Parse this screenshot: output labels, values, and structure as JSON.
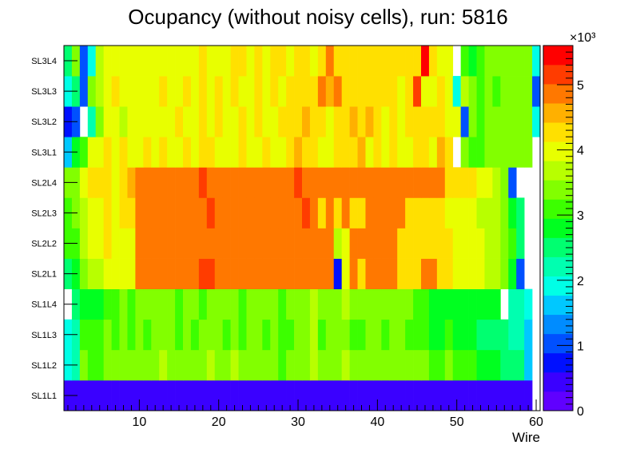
{
  "chart_data": {
    "type": "heatmap",
    "title": "Ocupancy (without noisy cells), run: 5816",
    "xlabel": "Wire",
    "ylabel": "",
    "xlim": [
      0.5,
      60.5
    ],
    "x_ticks": [
      "10",
      "20",
      "30",
      "40",
      "50",
      "60"
    ],
    "rows": [
      "SL1L1",
      "SL1L2",
      "SL1L3",
      "SL1L4",
      "SL2L1",
      "SL2L2",
      "SL2L3",
      "SL2L4",
      "SL3L1",
      "SL3L2",
      "SL3L3",
      "SL3L4"
    ],
    "colorbar": {
      "min": 0,
      "max": 5600,
      "exponent_label": "×10³",
      "ticks": [
        "0",
        "1",
        "2",
        "3",
        "4",
        "5"
      ],
      "palette": [
        "#6000ff",
        "#3a00ff",
        "#0010ff",
        "#0050ff",
        "#008cff",
        "#00c8ff",
        "#00ffe6",
        "#00ffb0",
        "#00ff70",
        "#00ff20",
        "#3cff00",
        "#82ff00",
        "#b8ff00",
        "#e8ff00",
        "#ffe000",
        "#ffb000",
        "#ff7800",
        "#ff3c00",
        "#ff0000"
      ]
    },
    "values": {
      "SL1L1": [
        350,
        350,
        350,
        350,
        350,
        350,
        350,
        350,
        350,
        350,
        350,
        350,
        350,
        350,
        350,
        350,
        350,
        350,
        350,
        350,
        350,
        350,
        350,
        350,
        350,
        350,
        350,
        350,
        350,
        350,
        350,
        350,
        350,
        350,
        350,
        350,
        350,
        350,
        350,
        350,
        350,
        350,
        350,
        350,
        350,
        350,
        350,
        350,
        350,
        350,
        350,
        350,
        350,
        350,
        350,
        350,
        350,
        350,
        350,
        0
      ],
      "SL1L2": [
        1800,
        2100,
        3300,
        3000,
        3200,
        3400,
        3300,
        3500,
        3300,
        3400,
        3300,
        3500,
        3600,
        3400,
        3300,
        3500,
        3400,
        3300,
        3600,
        3500,
        3400,
        3600,
        3300,
        3400,
        3500,
        3300,
        3400,
        3200,
        3400,
        3500,
        3400,
        3800,
        3300,
        3400,
        3500,
        3600,
        3400,
        3300,
        3500,
        3400,
        3300,
        3500,
        3400,
        3300,
        3400,
        3300,
        3100,
        3200,
        3300,
        3000,
        3100,
        3000,
        2900,
        2800,
        2700,
        2600,
        2500,
        2400,
        1600,
        0
      ],
      "SL1L3": [
        1800,
        2200,
        3100,
        3200,
        3000,
        3300,
        3100,
        3400,
        3200,
        3300,
        3100,
        3400,
        3500,
        3300,
        3100,
        3400,
        3200,
        3300,
        3500,
        3400,
        3200,
        3500,
        3100,
        3300,
        3400,
        3100,
        3300,
        3000,
        3200,
        3400,
        3300,
        3700,
        3100,
        3300,
        3400,
        3500,
        3200,
        3100,
        3400,
        3300,
        3200,
        3400,
        3300,
        3200,
        3100,
        3000,
        2900,
        2900,
        3000,
        2800,
        2800,
        2700,
        2600,
        2500,
        2500,
        2400,
        2300,
        2200,
        1500,
        0
      ],
      "SL1L4": [
        0,
        2500,
        2700,
        2900,
        2800,
        3200,
        3100,
        3300,
        3200,
        3300,
        3300,
        3400,
        3500,
        3300,
        3200,
        3400,
        3300,
        3200,
        3500,
        3400,
        3300,
        3500,
        3200,
        3300,
        3400,
        3300,
        3400,
        3200,
        3300,
        3400,
        3300,
        3800,
        3300,
        3400,
        3500,
        3600,
        3400,
        3300,
        3500,
        3400,
        3300,
        3500,
        3400,
        3300,
        3200,
        3100,
        2900,
        2800,
        2900,
        2800,
        2900,
        2700,
        2800,
        2800,
        2700,
        0,
        2300,
        2200,
        1800,
        0
      ],
      "SL2L1": [
        2600,
        2900,
        3400,
        3700,
        3800,
        4100,
        4100,
        4100,
        4100,
        4800,
        4800,
        4800,
        4800,
        4800,
        4800,
        4800,
        4800,
        5100,
        5100,
        4800,
        4800,
        4800,
        4800,
        4800,
        4800,
        4800,
        4800,
        4800,
        4800,
        4800,
        4800,
        4800,
        4800,
        4800,
        600,
        4100,
        4800,
        4400,
        4800,
        4800,
        4800,
        4800,
        4400,
        4400,
        4400,
        4800,
        4800,
        4400,
        4400,
        4100,
        4100,
        4100,
        4000,
        3800,
        3800,
        3500,
        2900,
        1000,
        0,
        0
      ],
      "SL2L2": [
        3000,
        3100,
        3700,
        4000,
        4100,
        4200,
        4100,
        4100,
        4100,
        4800,
        4800,
        4800,
        4800,
        4800,
        4800,
        4800,
        4800,
        4800,
        4800,
        4800,
        4800,
        4800,
        4800,
        4800,
        4800,
        4800,
        4800,
        4800,
        4800,
        4800,
        4800,
        4800,
        4800,
        4800,
        3800,
        4100,
        4800,
        4800,
        4800,
        4800,
        4800,
        4800,
        4400,
        4400,
        4400,
        4400,
        4400,
        4400,
        4400,
        4100,
        4100,
        4100,
        4000,
        3800,
        3800,
        3500,
        3200,
        2500,
        0,
        0
      ],
      "SL2L3": [
        3100,
        3300,
        3800,
        4000,
        4100,
        4200,
        4100,
        4200,
        4200,
        4800,
        4800,
        4800,
        4800,
        4800,
        4800,
        4800,
        4800,
        4800,
        5100,
        4800,
        4800,
        4800,
        4800,
        4800,
        4800,
        4800,
        4800,
        4800,
        4800,
        4800,
        5100,
        4800,
        4400,
        4800,
        4400,
        4800,
        4400,
        4400,
        4800,
        4800,
        4800,
        4800,
        4800,
        4400,
        4400,
        4400,
        4400,
        4400,
        4100,
        4100,
        4100,
        4000,
        3800,
        3800,
        3800,
        3500,
        2900,
        2500,
        0,
        0
      ],
      "SL2L4": [
        3300,
        3500,
        4100,
        4200,
        4200,
        4200,
        4100,
        4200,
        4600,
        4800,
        4800,
        4800,
        4800,
        4800,
        4800,
        4800,
        4800,
        5100,
        4800,
        4800,
        4800,
        4800,
        4800,
        4800,
        4800,
        4800,
        4800,
        4800,
        4800,
        5100,
        4800,
        4800,
        4800,
        4800,
        4800,
        4800,
        4800,
        4800,
        4800,
        4800,
        4800,
        4800,
        4800,
        4800,
        4800,
        4800,
        4800,
        4800,
        4400,
        4400,
        4400,
        4400,
        4100,
        4100,
        3800,
        3500,
        1000,
        0,
        0,
        0
      ],
      "SL3L1": [
        1600,
        2900,
        3100,
        3900,
        4100,
        4200,
        4100,
        4200,
        3900,
        4000,
        4200,
        4100,
        4200,
        4100,
        4000,
        4200,
        4100,
        4300,
        4200,
        4100,
        3900,
        4100,
        4200,
        4000,
        4100,
        4200,
        4000,
        4100,
        4200,
        4600,
        4300,
        4200,
        4000,
        4100,
        4300,
        4400,
        4200,
        4600,
        4100,
        4200,
        4100,
        4200,
        4100,
        4100,
        4300,
        4200,
        4000,
        4500,
        4400,
        0,
        3500,
        3200,
        3100,
        3400,
        3300,
        3400,
        3300,
        3300,
        3300,
        0
      ],
      "SL3L2": [
        700,
        1100,
        0,
        2100,
        3300,
        3900,
        4100,
        3800,
        4000,
        4100,
        4000,
        4100,
        4000,
        4100,
        4200,
        4000,
        4100,
        4200,
        4100,
        4200,
        4000,
        4100,
        4200,
        4100,
        4200,
        4000,
        4100,
        4200,
        4400,
        4300,
        4600,
        4300,
        4200,
        4100,
        4200,
        4300,
        4500,
        4200,
        4700,
        4200,
        4100,
        4200,
        4100,
        4300,
        4200,
        4200,
        4400,
        4200,
        4100,
        4000,
        1000,
        3400,
        3200,
        3300,
        3400,
        3300,
        3300,
        3300,
        3300,
        1800
      ],
      "SL3L3": [
        1800,
        2500,
        900,
        3300,
        3600,
        4000,
        4200,
        4000,
        3900,
        4100,
        4000,
        4100,
        4300,
        4100,
        4000,
        4200,
        4100,
        4200,
        4000,
        4200,
        4100,
        4300,
        4000,
        4100,
        4200,
        4100,
        4300,
        4100,
        4200,
        4300,
        4400,
        4300,
        4800,
        4700,
        4800,
        4400,
        4300,
        4300,
        4400,
        4300,
        4200,
        4300,
        4100,
        4200,
        5100,
        4000,
        4100,
        4200,
        3900,
        2000,
        3800,
        3500,
        3100,
        3300,
        3100,
        3400,
        3300,
        3300,
        3300,
        1000
      ],
      "SL3L4": [
        2600,
        3500,
        900,
        2000,
        3600,
        4000,
        4100,
        3900,
        4100,
        4000,
        3900,
        4100,
        4000,
        4100,
        4000,
        4100,
        4000,
        4300,
        4100,
        4000,
        4100,
        4300,
        4200,
        4100,
        4200,
        4100,
        4400,
        4200,
        4100,
        4300,
        4200,
        4100,
        4200,
        4800,
        4300,
        4300,
        4400,
        4300,
        4300,
        4300,
        4200,
        4300,
        4200,
        4300,
        4400,
        5500,
        4300,
        4100,
        4000,
        0,
        3000,
        2900,
        3100,
        3300,
        3300,
        3500,
        3300,
        3300,
        3300,
        1800
      ]
    }
  }
}
